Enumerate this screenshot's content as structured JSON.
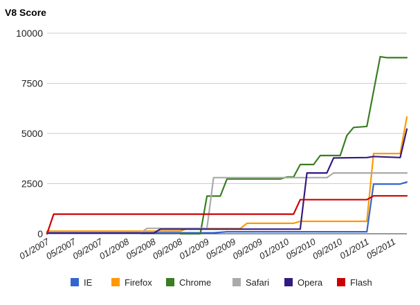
{
  "chart_data": {
    "type": "line",
    "title": "V8 Score",
    "xlabel": "",
    "ylabel": "",
    "ylim": [
      0,
      10000
    ],
    "yticks": [
      "0",
      "2500",
      "5000",
      "7500",
      "10000"
    ],
    "ytick_values": [
      0,
      2500,
      5000,
      7500,
      10000
    ],
    "x_tick_labels": [
      "01/2007",
      "05/2007",
      "09/2007",
      "01/2008",
      "05/2008",
      "09/2008",
      "01/2009",
      "05/2009",
      "09/2009",
      "01/2010",
      "05/2010",
      "09/2010",
      "01/2011",
      "05/2011"
    ],
    "x_range": [
      "2007-01",
      "2011-07"
    ],
    "grid": true,
    "legend_position": "bottom",
    "series": [
      {
        "name": "IE",
        "color": "#3366cc",
        "points": [
          [
            "2007-01",
            0
          ],
          [
            "2007-01",
            50
          ],
          [
            "2008-12",
            50
          ],
          [
            "2009-02",
            50
          ],
          [
            "2009-04",
            100
          ],
          [
            "2011-01",
            100
          ],
          [
            "2011-02",
            2480
          ],
          [
            "2011-06",
            2480
          ],
          [
            "2011-07",
            2580
          ]
        ]
      },
      {
        "name": "Firefox",
        "color": "#ff9900",
        "points": [
          [
            "2007-01",
            0
          ],
          [
            "2007-01",
            130
          ],
          [
            "2008-09",
            130
          ],
          [
            "2008-10",
            260
          ],
          [
            "2009-06",
            260
          ],
          [
            "2009-07",
            520
          ],
          [
            "2010-02",
            520
          ],
          [
            "2010-03",
            620
          ],
          [
            "2011-01",
            620
          ],
          [
            "2011-02",
            4000
          ],
          [
            "2011-06",
            4000
          ],
          [
            "2011-07",
            5820
          ]
        ]
      },
      {
        "name": "Chrome",
        "color": "#3a7d22",
        "points": [
          [
            "2008-09",
            0
          ],
          [
            "2008-12",
            0
          ],
          [
            "2009-01",
            1880
          ],
          [
            "2009-03",
            1880
          ],
          [
            "2009-04",
            2730
          ],
          [
            "2009-12",
            2730
          ],
          [
            "2010-01",
            2830
          ],
          [
            "2010-02",
            2830
          ],
          [
            "2010-03",
            3450
          ],
          [
            "2010-05",
            3450
          ],
          [
            "2010-06",
            3900
          ],
          [
            "2010-09",
            3900
          ],
          [
            "2010-10",
            4900
          ],
          [
            "2010-11",
            5300
          ],
          [
            "2011-01",
            5350
          ],
          [
            "2011-03",
            8830
          ],
          [
            "2011-04",
            8780
          ],
          [
            "2011-07",
            8780
          ]
        ]
      },
      {
        "name": "Safari",
        "color": "#aaaaaa",
        "points": [
          [
            "2007-01",
            0
          ],
          [
            "2007-01",
            20
          ],
          [
            "2008-03",
            20
          ],
          [
            "2008-04",
            270
          ],
          [
            "2009-01",
            270
          ],
          [
            "2009-02",
            2800
          ],
          [
            "2010-07",
            2800
          ],
          [
            "2010-08",
            3030
          ],
          [
            "2011-07",
            3030
          ]
        ]
      },
      {
        "name": "Opera",
        "color": "#331a80",
        "points": [
          [
            "2007-01",
            0
          ],
          [
            "2007-01",
            30
          ],
          [
            "2008-05",
            30
          ],
          [
            "2008-06",
            230
          ],
          [
            "2010-03",
            230
          ],
          [
            "2010-04",
            3030
          ],
          [
            "2010-07",
            3030
          ],
          [
            "2010-08",
            3780
          ],
          [
            "2011-01",
            3800
          ],
          [
            "2011-02",
            3850
          ],
          [
            "2011-06",
            3800
          ],
          [
            "2011-07",
            5220
          ]
        ]
      },
      {
        "name": "Flash",
        "color": "#cc0000",
        "points": [
          [
            "2007-01",
            0
          ],
          [
            "2007-02",
            980
          ],
          [
            "2010-02",
            980
          ],
          [
            "2010-03",
            1700
          ],
          [
            "2011-01",
            1700
          ],
          [
            "2011-02",
            1890
          ],
          [
            "2011-07",
            1890
          ]
        ]
      }
    ]
  }
}
